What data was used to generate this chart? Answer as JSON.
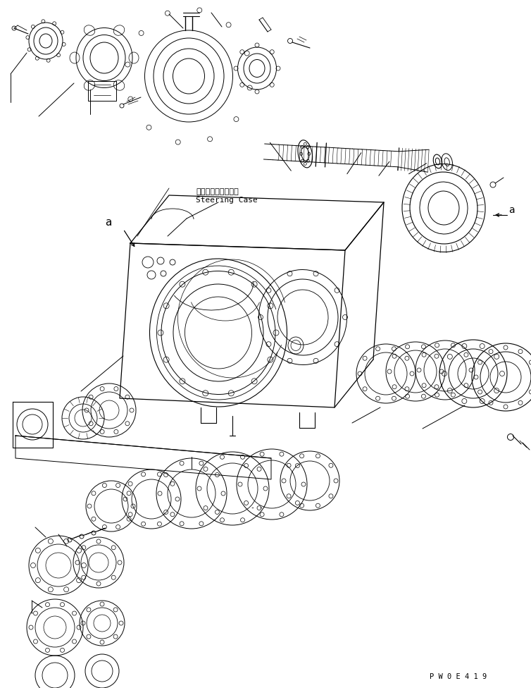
{
  "bg_color": "#ffffff",
  "line_color": "#000000",
  "fig_width": 7.54,
  "fig_height": 9.76,
  "dpi": 100,
  "watermark": "P W 0 E 4 1 9",
  "label_steering_case_jp": "ステアリングケース",
  "label_steering_case_en": "Steering Case",
  "label_a": "a"
}
